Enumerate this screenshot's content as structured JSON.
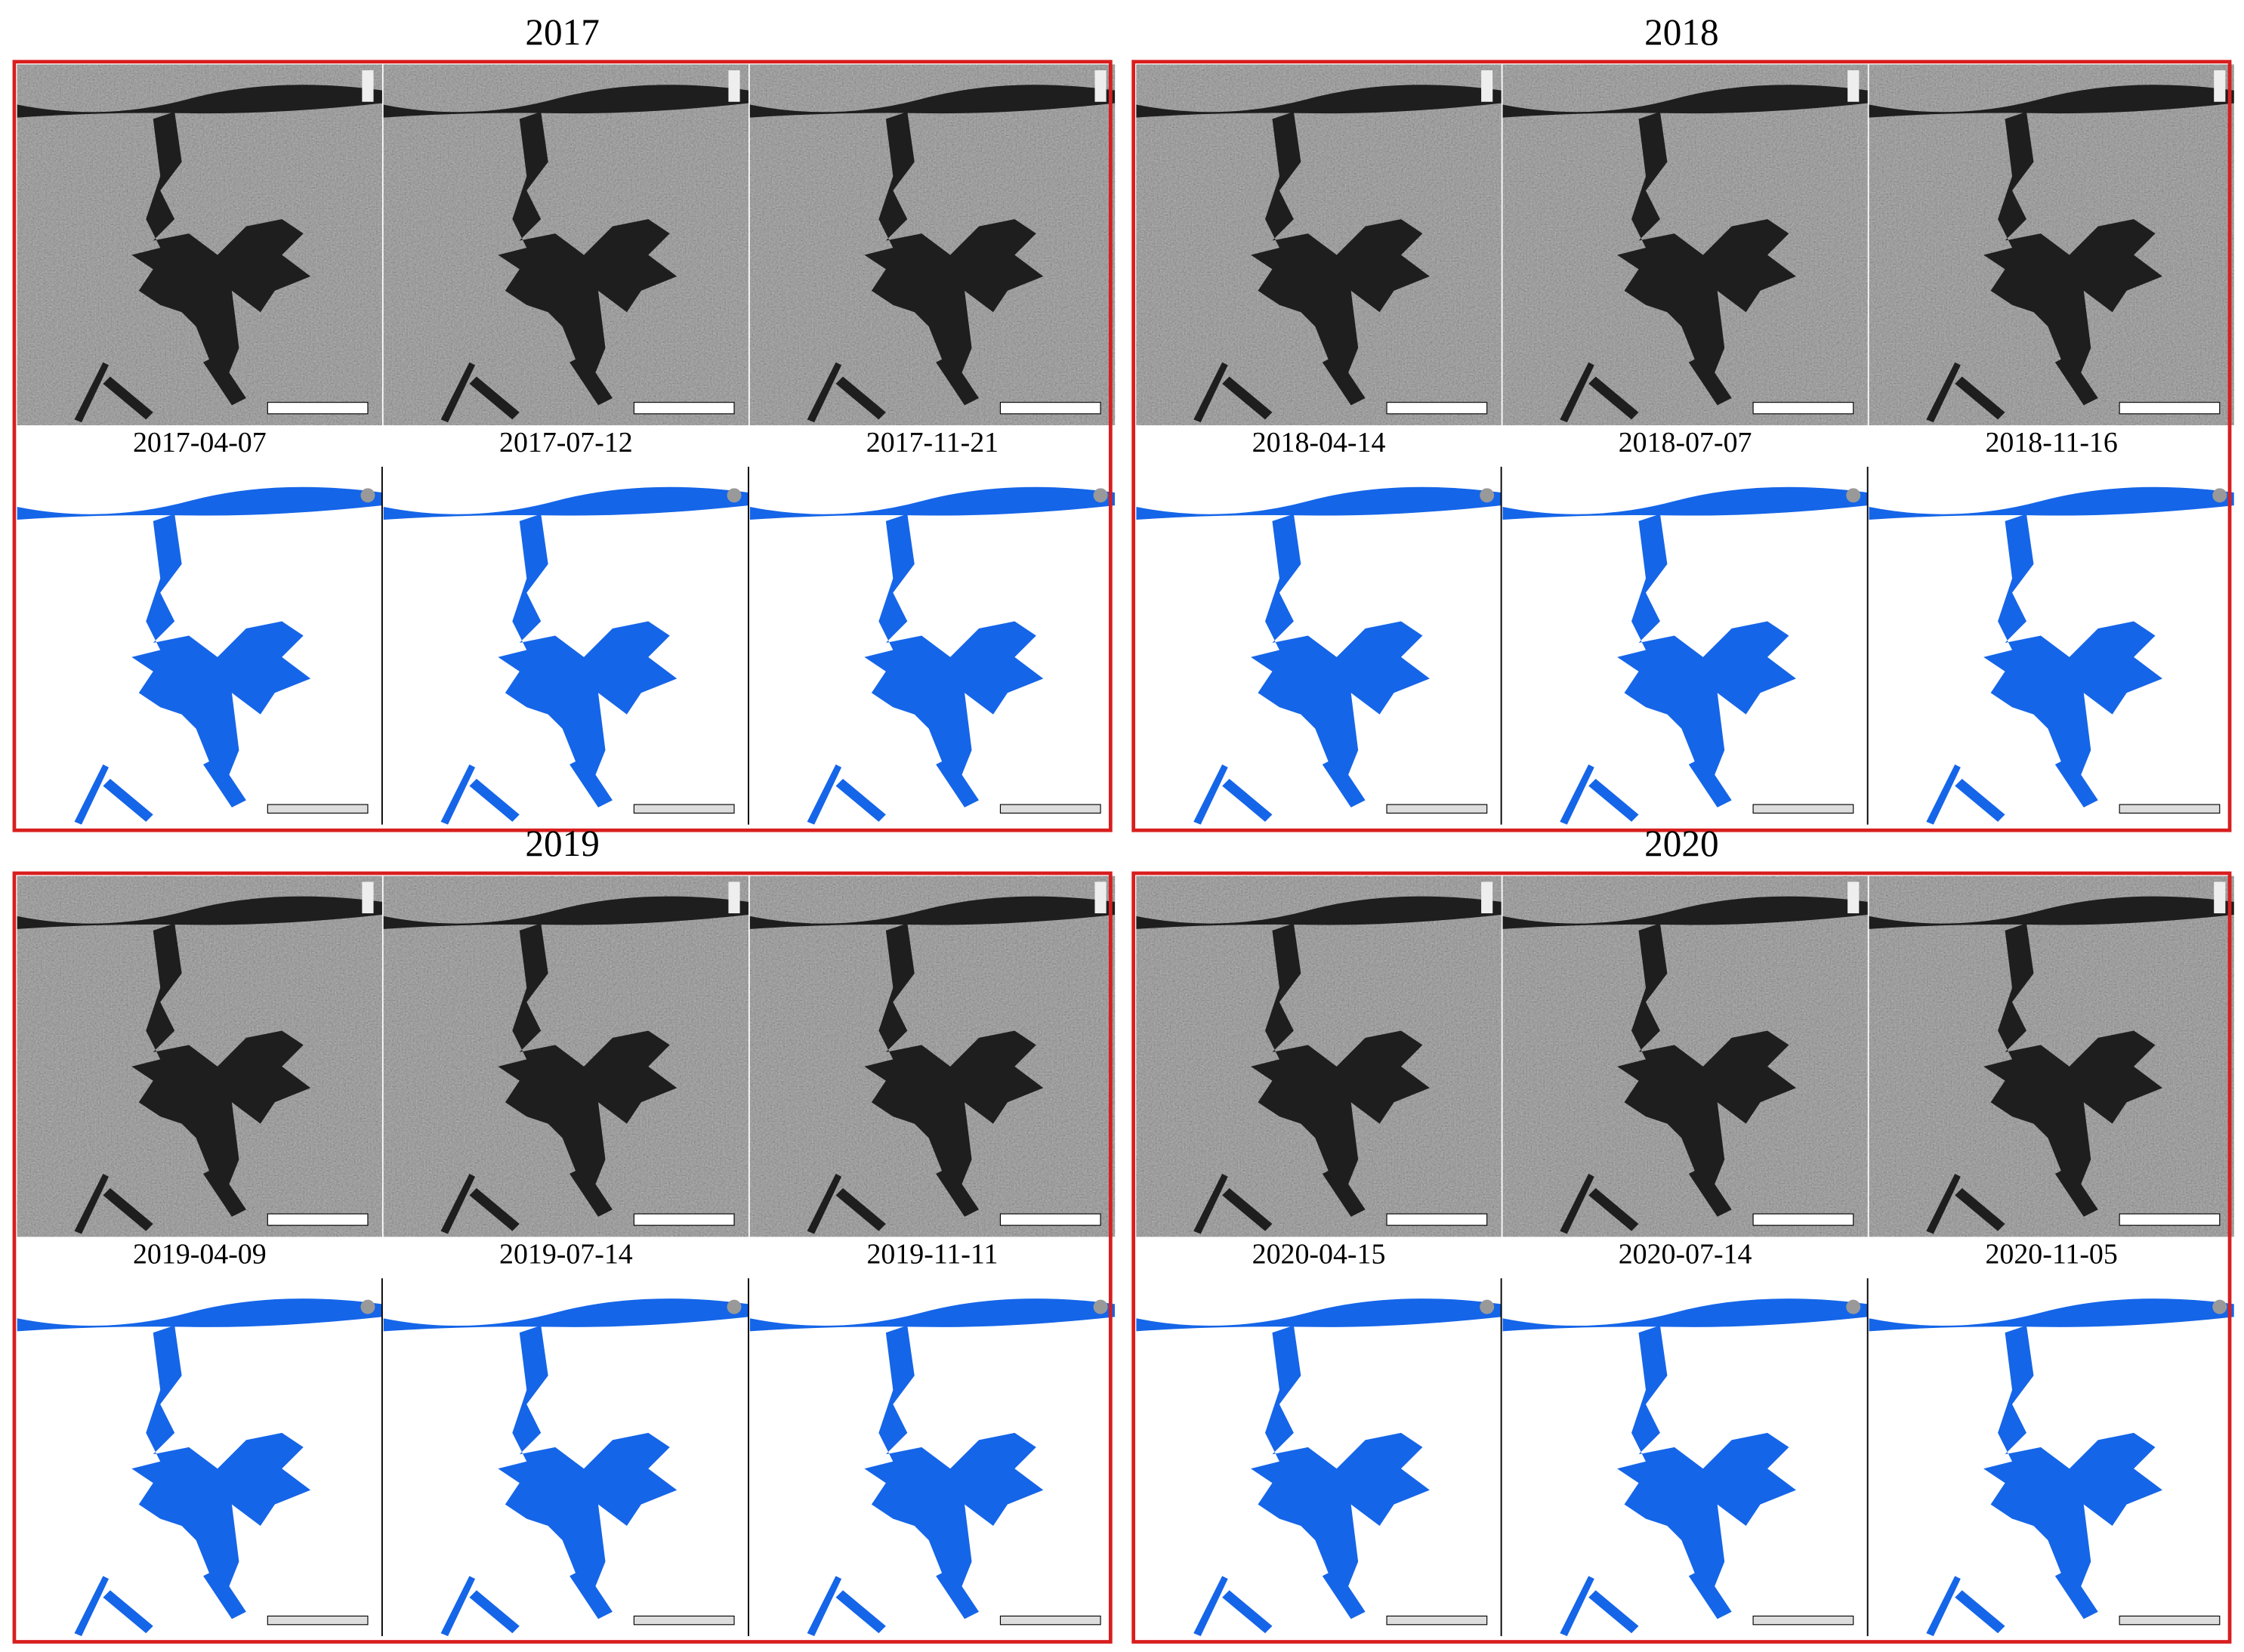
{
  "panels": [
    {
      "title": "2017",
      "dates": [
        "2017-04-07",
        "2017-07-12",
        "2017-11-21"
      ]
    },
    {
      "title": "2018",
      "dates": [
        "2018-04-14",
        "2018-07-07",
        "2018-11-16"
      ]
    },
    {
      "title": "2019",
      "dates": [
        "2019-04-09",
        "2019-07-14",
        "2019-11-11"
      ]
    },
    {
      "title": "2020",
      "dates": [
        "2020-04-15",
        "2020-07-14",
        "2020-11-05"
      ]
    }
  ]
}
